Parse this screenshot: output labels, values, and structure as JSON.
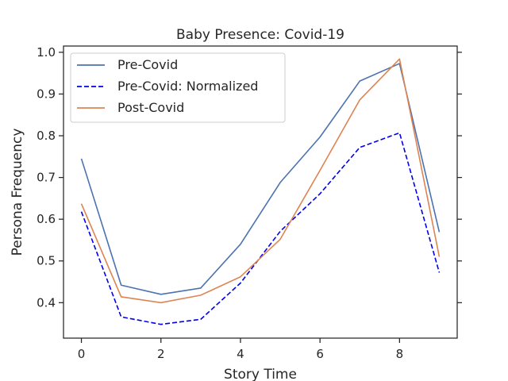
{
  "chart_data": {
    "type": "line",
    "title": "Baby Presence: Covid-19",
    "xlabel": "Story Time",
    "ylabel": "Persona Frequency",
    "xlim": [
      -0.45,
      9.45
    ],
    "ylim": [
      0.315,
      1.015
    ],
    "xticks": [
      0,
      2,
      4,
      6,
      8
    ],
    "xtick_labels": [
      "0",
      "2",
      "4",
      "6",
      "8"
    ],
    "yticks": [
      0.4,
      0.5,
      0.6,
      0.7,
      0.8,
      0.9,
      1.0
    ],
    "ytick_labels": [
      "0.4",
      "0.5",
      "0.6",
      "0.7",
      "0.8",
      "0.9",
      "1.0"
    ],
    "grid": false,
    "legend_position": "upper-left",
    "x": [
      0,
      1,
      2,
      3,
      4,
      5,
      6,
      7,
      8,
      9
    ],
    "series": [
      {
        "name": "Pre-Covid",
        "color": "#4c72b0",
        "dash": "solid",
        "values": [
          0.745,
          0.442,
          0.42,
          0.435,
          0.54,
          0.688,
          0.797,
          0.931,
          0.973,
          0.569
        ]
      },
      {
        "name": "Pre-Covid: Normalized",
        "color": "#0000ee",
        "dash": "dashed",
        "values": [
          0.618,
          0.366,
          0.348,
          0.36,
          0.447,
          0.571,
          0.661,
          0.772,
          0.807,
          0.472
        ]
      },
      {
        "name": "Post-Covid",
        "color": "#dd8452",
        "dash": "solid",
        "values": [
          0.637,
          0.414,
          0.4,
          0.418,
          0.462,
          0.552,
          0.717,
          0.886,
          0.984,
          0.51
        ]
      }
    ]
  }
}
